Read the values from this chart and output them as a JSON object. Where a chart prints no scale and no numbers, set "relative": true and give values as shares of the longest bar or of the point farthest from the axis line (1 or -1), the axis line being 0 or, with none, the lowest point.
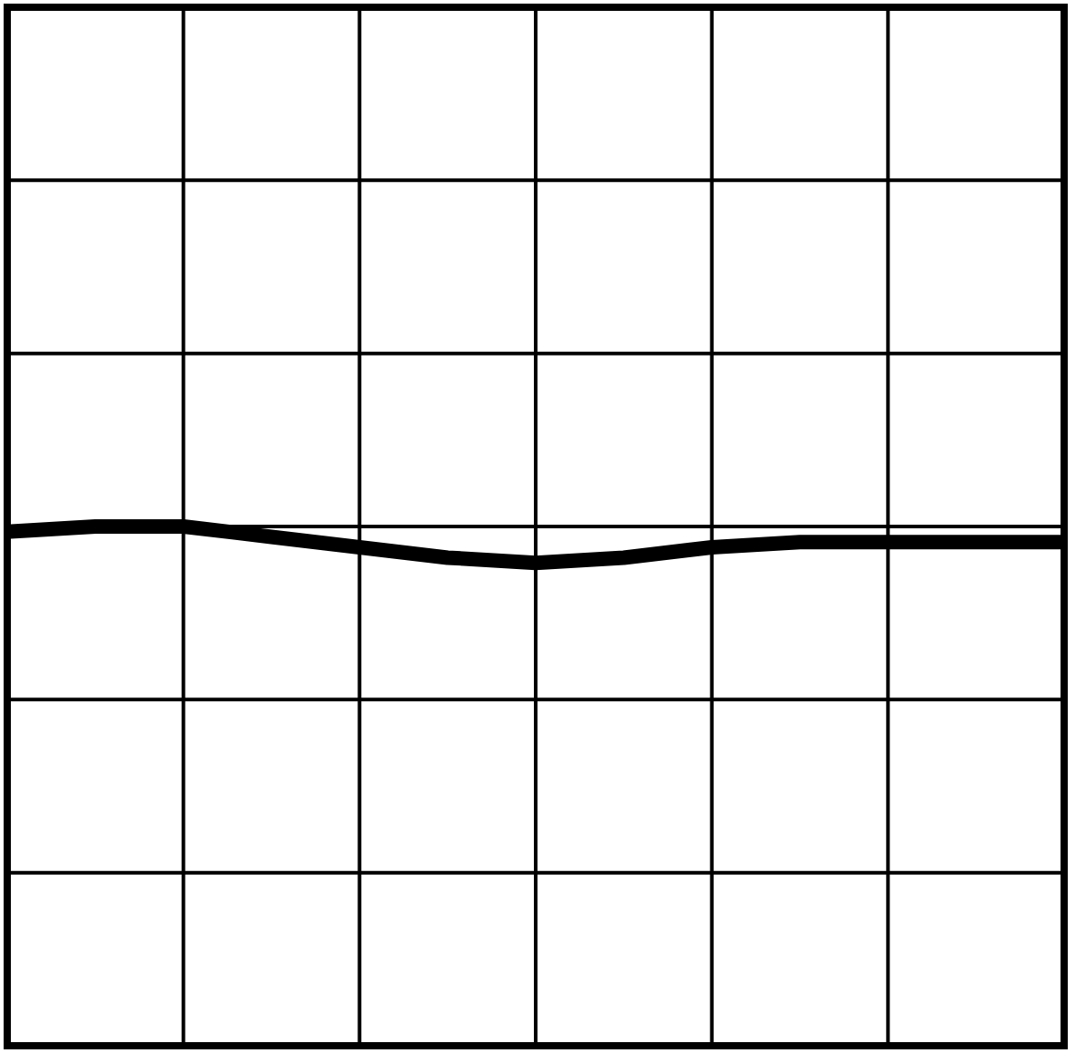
{
  "chart_data": {
    "type": "line",
    "relative": true,
    "categories": [
      null,
      null,
      null,
      null,
      null,
      null,
      null,
      null,
      null,
      null,
      null,
      null,
      null
    ],
    "color": "#000000",
    "values": [
      0.99,
      1,
      1,
      0.98,
      0.96,
      0.94,
      0.93,
      0.94,
      0.96,
      0.97,
      0.97,
      0.97,
      0.97
    ],
    "grid": true,
    "marker": "none",
    "line_style": "solid"
  }
}
